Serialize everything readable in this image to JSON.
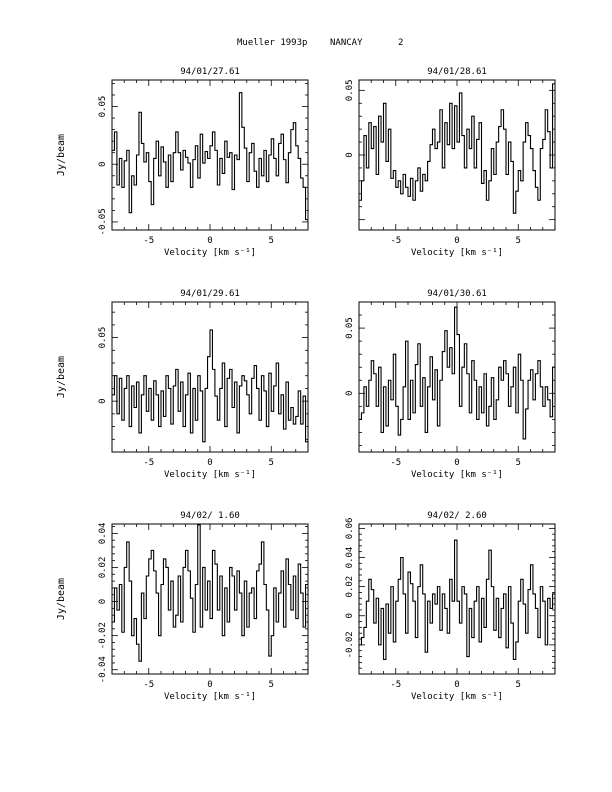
{
  "header": {
    "source": "Mueller 1993p",
    "telescope": "NANCAY",
    "page_number": "2"
  },
  "chart_data": [
    {
      "type": "line",
      "title": "94/01/27.61",
      "xlabel": "Velocity [km s⁻¹]",
      "ylabel": "Jy/beam",
      "xlim": [
        -8,
        8
      ],
      "ylim": [
        -0.057,
        0.073
      ],
      "xticks": [
        -5,
        0,
        5
      ],
      "xtick_labels": [
        "-5",
        "0",
        "5"
      ],
      "yticks": [
        -0.05,
        0,
        0.05
      ],
      "ytick_labels": [
        "-0.05",
        "0",
        "0.05"
      ],
      "grid": false,
      "x": [
        -7.9,
        -7.7,
        -7.5,
        -7.3,
        -7.1,
        -6.9,
        -6.7,
        -6.5,
        -6.3,
        -6.1,
        -5.9,
        -5.7,
        -5.5,
        -5.3,
        -5.1,
        -4.9,
        -4.7,
        -4.5,
        -4.3,
        -4.1,
        -3.9,
        -3.7,
        -3.5,
        -3.3,
        -3.1,
        -2.9,
        -2.7,
        -2.5,
        -2.3,
        -2.1,
        -1.9,
        -1.7,
        -1.5,
        -1.3,
        -1.1,
        -0.9,
        -0.7,
        -0.5,
        -0.3,
        -0.1,
        0.1,
        0.3,
        0.5,
        0.7,
        0.9,
        1.1,
        1.3,
        1.5,
        1.7,
        1.9,
        2.1,
        2.3,
        2.5,
        2.7,
        2.9,
        3.1,
        3.3,
        3.5,
        3.7,
        3.9,
        4.1,
        4.3,
        4.5,
        4.7,
        4.9,
        5.1,
        5.3,
        5.5,
        5.7,
        5.9,
        6.1,
        6.3,
        6.5,
        6.7,
        6.9,
        7.1,
        7.3,
        7.5,
        7.7,
        7.9
      ],
      "y": [
        0.012,
        0.028,
        -0.018,
        0.005,
        -0.02,
        0.003,
        0.012,
        -0.042,
        -0.01,
        -0.018,
        0.008,
        0.045,
        0.018,
        0.002,
        0.01,
        -0.015,
        -0.035,
        0.005,
        0.02,
        -0.01,
        0.015,
        0.002,
        -0.02,
        0.008,
        -0.015,
        0.01,
        0.028,
        0.01,
        -0.005,
        0.012,
        0.006,
        0.001,
        -0.02,
        0.004,
        0.016,
        -0.012,
        0.026,
        0.001,
        0.011,
        0.005,
        0.016,
        0.028,
        0.012,
        -0.018,
        0.005,
        -0.008,
        0.02,
        0.006,
        0.01,
        -0.022,
        0.008,
        0.004,
        0.062,
        0.032,
        0.014,
        -0.015,
        0.01,
        0.018,
        -0.006,
        -0.02,
        0.005,
        -0.01,
        0.012,
        -0.015,
        0.008,
        0.022,
        0.005,
        -0.01,
        0.018,
        0.026,
        0.004,
        -0.016,
        0.01,
        0.03,
        0.036,
        0.016,
        0.005,
        -0.012,
        -0.02,
        -0.048
      ]
    },
    {
      "type": "line",
      "title": "94/01/28.61",
      "xlabel": "Velocity [km s⁻¹]",
      "ylabel": "",
      "xlim": [
        -8,
        8
      ],
      "ylim": [
        -0.058,
        0.058
      ],
      "xticks": [
        -5,
        0,
        5
      ],
      "xtick_labels": [
        "-5",
        "0",
        "5"
      ],
      "yticks": [
        0,
        0.05
      ],
      "ytick_labels": [
        "0",
        "0.05"
      ],
      "grid": false,
      "x": [
        -7.9,
        -7.7,
        -7.5,
        -7.3,
        -7.1,
        -6.9,
        -6.7,
        -6.5,
        -6.3,
        -6.1,
        -5.9,
        -5.7,
        -5.5,
        -5.3,
        -5.1,
        -4.9,
        -4.7,
        -4.5,
        -4.3,
        -4.1,
        -3.9,
        -3.7,
        -3.5,
        -3.3,
        -3.1,
        -2.9,
        -2.7,
        -2.5,
        -2.3,
        -2.1,
        -1.9,
        -1.7,
        -1.5,
        -1.3,
        -1.1,
        -0.9,
        -0.7,
        -0.5,
        -0.3,
        -0.1,
        0.1,
        0.3,
        0.5,
        0.7,
        0.9,
        1.1,
        1.3,
        1.5,
        1.7,
        1.9,
        2.1,
        2.3,
        2.5,
        2.7,
        2.9,
        3.1,
        3.3,
        3.5,
        3.7,
        3.9,
        4.1,
        4.3,
        4.5,
        4.7,
        4.9,
        5.1,
        5.3,
        5.5,
        5.7,
        5.9,
        6.1,
        6.3,
        6.5,
        6.7,
        6.9,
        7.1,
        7.3,
        7.5,
        7.7,
        7.9
      ],
      "y": [
        -0.035,
        -0.02,
        0.015,
        -0.01,
        0.025,
        0.005,
        0.022,
        -0.015,
        0.03,
        0.01,
        0.04,
        -0.005,
        0.02,
        -0.018,
        -0.012,
        -0.025,
        -0.02,
        -0.03,
        -0.015,
        -0.025,
        -0.032,
        -0.018,
        -0.035,
        -0.02,
        -0.01,
        -0.028,
        -0.015,
        -0.02,
        -0.005,
        0.008,
        0.02,
        0.005,
        0.01,
        0.035,
        -0.01,
        0.025,
        0.008,
        0.04,
        0.005,
        0.038,
        0.01,
        0.048,
        0.015,
        -0.01,
        0.02,
        0.005,
        0.03,
        -0.01,
        0.012,
        0.025,
        -0.022,
        -0.012,
        -0.035,
        -0.02,
        0.005,
        -0.015,
        0.01,
        0.022,
        0.035,
        0.02,
        -0.015,
        0.01,
        -0.005,
        -0.045,
        -0.028,
        -0.012,
        -0.02,
        0.01,
        0.025,
        0.015,
        0.005,
        -0.012,
        -0.025,
        -0.035,
        0.005,
        0.012,
        0.035,
        0.018,
        -0.01,
        0.055
      ]
    },
    {
      "type": "line",
      "title": "94/01/29.61",
      "xlabel": "Velocity [km s⁻¹]",
      "ylabel": "Jy/beam",
      "xlim": [
        -8,
        8
      ],
      "ylim": [
        -0.04,
        0.078
      ],
      "xticks": [
        -5,
        0,
        5
      ],
      "xtick_labels": [
        "-5",
        "0",
        "5"
      ],
      "yticks": [
        0,
        0.05
      ],
      "ytick_labels": [
        "0",
        "0.05"
      ],
      "grid": false,
      "x": [
        -7.9,
        -7.7,
        -7.5,
        -7.3,
        -7.1,
        -6.9,
        -6.7,
        -6.5,
        -6.3,
        -6.1,
        -5.9,
        -5.7,
        -5.5,
        -5.3,
        -5.1,
        -4.9,
        -4.7,
        -4.5,
        -4.3,
        -4.1,
        -3.9,
        -3.7,
        -3.5,
        -3.3,
        -3.1,
        -2.9,
        -2.7,
        -2.5,
        -2.3,
        -2.1,
        -1.9,
        -1.7,
        -1.5,
        -1.3,
        -1.1,
        -0.9,
        -0.7,
        -0.5,
        -0.3,
        -0.1,
        0.1,
        0.3,
        0.5,
        0.7,
        0.9,
        1.1,
        1.3,
        1.5,
        1.7,
        1.9,
        2.1,
        2.3,
        2.5,
        2.7,
        2.9,
        3.1,
        3.3,
        3.5,
        3.7,
        3.9,
        4.1,
        4.3,
        4.5,
        4.7,
        4.9,
        5.1,
        5.3,
        5.5,
        5.7,
        5.9,
        6.1,
        6.3,
        6.5,
        6.7,
        6.9,
        7.1,
        7.3,
        7.5,
        7.7,
        7.9
      ],
      "y": [
        0.005,
        0.02,
        -0.01,
        0.018,
        -0.015,
        0.01,
        0.02,
        -0.02,
        0.012,
        -0.005,
        0.015,
        -0.025,
        0.005,
        0.02,
        -0.008,
        0.01,
        -0.015,
        0.016,
        0.005,
        -0.02,
        0.008,
        -0.012,
        0.02,
        0.01,
        -0.018,
        0.012,
        0.025,
        -0.008,
        0.015,
        -0.02,
        0.005,
        0.022,
        -0.025,
        0.01,
        -0.015,
        0.02,
        0.008,
        -0.032,
        0.01,
        0.035,
        0.056,
        0.025,
        0.004,
        -0.015,
        0.01,
        0.03,
        -0.02,
        0.018,
        0.025,
        -0.005,
        0.015,
        -0.025,
        0.012,
        0.02,
        0.016,
        0.005,
        -0.01,
        0.018,
        0.028,
        0.01,
        -0.015,
        0.02,
        0.008,
        -0.02,
        0.022,
        -0.008,
        0.012,
        0.03,
        -0.01,
        0.005,
        -0.022,
        0.015,
        -0.015,
        -0.005,
        -0.018,
        -0.012,
        0.008,
        -0.018,
        0.004,
        -0.032
      ]
    },
    {
      "type": "line",
      "title": "94/01/30.61",
      "xlabel": "Velocity [km s⁻¹]",
      "ylabel": "",
      "xlim": [
        -8,
        8
      ],
      "ylim": [
        -0.045,
        0.07
      ],
      "xticks": [
        -5,
        0,
        5
      ],
      "xtick_labels": [
        "-5",
        "0",
        "5"
      ],
      "yticks": [
        0,
        0.05
      ],
      "ytick_labels": [
        "0",
        "0.05"
      ],
      "grid": false,
      "x": [
        -7.9,
        -7.7,
        -7.5,
        -7.3,
        -7.1,
        -6.9,
        -6.7,
        -6.5,
        -6.3,
        -6.1,
        -5.9,
        -5.7,
        -5.5,
        -5.3,
        -5.1,
        -4.9,
        -4.7,
        -4.5,
        -4.3,
        -4.1,
        -3.9,
        -3.7,
        -3.5,
        -3.3,
        -3.1,
        -2.9,
        -2.7,
        -2.5,
        -2.3,
        -2.1,
        -1.9,
        -1.7,
        -1.5,
        -1.3,
        -1.1,
        -0.9,
        -0.7,
        -0.5,
        -0.3,
        -0.1,
        0.1,
        0.3,
        0.5,
        0.7,
        0.9,
        1.1,
        1.3,
        1.5,
        1.7,
        1.9,
        2.1,
        2.3,
        2.5,
        2.7,
        2.9,
        3.1,
        3.3,
        3.5,
        3.7,
        3.9,
        4.1,
        4.3,
        4.5,
        4.7,
        4.9,
        5.1,
        5.3,
        5.5,
        5.7,
        5.9,
        6.1,
        6.3,
        6.5,
        6.7,
        6.9,
        7.1,
        7.3,
        7.5,
        7.7,
        7.9
      ],
      "y": [
        -0.02,
        -0.015,
        0.005,
        -0.01,
        0.01,
        0.025,
        0.015,
        -0.01,
        0.02,
        -0.03,
        0.005,
        -0.025,
        0.01,
        -0.005,
        0.03,
        -0.01,
        -0.032,
        -0.02,
        0.005,
        0.04,
        -0.02,
        0.01,
        -0.015,
        0.022,
        0.038,
        -0.01,
        0.012,
        -0.03,
        0.005,
        0.028,
        -0.005,
        0.018,
        -0.025,
        0.01,
        0.032,
        0.048,
        0.02,
        0.035,
        0.015,
        0.066,
        0.045,
        -0.01,
        0.02,
        0.038,
        0.015,
        -0.015,
        0.025,
        0.01,
        -0.02,
        0.005,
        -0.015,
        0.015,
        -0.025,
        -0.01,
        0.012,
        -0.02,
        -0.005,
        0.02,
        0.01,
        0.025,
        0.015,
        -0.01,
        0.005,
        0.02,
        -0.015,
        0.03,
        0.01,
        -0.035,
        -0.012,
        0.01,
        0.018,
        -0.005,
        0.015,
        0.025,
        0.005,
        -0.01,
        0.005,
        -0.005,
        -0.018,
        0.02
      ]
    },
    {
      "type": "line",
      "title": "94/02/ 1.60",
      "xlabel": "Velocity [km s⁻¹]",
      "ylabel": "Jy/beam",
      "xlim": [
        -8,
        8
      ],
      "ylim": [
        -0.0425,
        0.0455
      ],
      "xticks": [
        -5,
        0,
        5
      ],
      "xtick_labels": [
        "-5",
        "0",
        "5"
      ],
      "yticks": [
        -0.04,
        -0.02,
        0,
        0.02,
        0.04
      ],
      "ytick_labels": [
        "-0.04",
        "-0.02",
        "0",
        "0.02",
        "0.04"
      ],
      "grid": false,
      "x": [
        -7.9,
        -7.7,
        -7.5,
        -7.3,
        -7.1,
        -6.9,
        -6.7,
        -6.5,
        -6.3,
        -6.1,
        -5.9,
        -5.7,
        -5.5,
        -5.3,
        -5.1,
        -4.9,
        -4.7,
        -4.5,
        -4.3,
        -4.1,
        -3.9,
        -3.7,
        -3.5,
        -3.3,
        -3.1,
        -2.9,
        -2.7,
        -2.5,
        -2.3,
        -2.1,
        -1.9,
        -1.7,
        -1.5,
        -1.3,
        -1.1,
        -0.9,
        -0.7,
        -0.5,
        -0.3,
        -0.1,
        0.1,
        0.3,
        0.5,
        0.7,
        0.9,
        1.1,
        1.3,
        1.5,
        1.7,
        1.9,
        2.1,
        2.3,
        2.5,
        2.7,
        2.9,
        3.1,
        3.3,
        3.5,
        3.7,
        3.9,
        4.1,
        4.3,
        4.5,
        4.7,
        4.9,
        5.1,
        5.3,
        5.5,
        5.7,
        5.9,
        6.1,
        6.3,
        6.5,
        6.7,
        6.9,
        7.1,
        7.3,
        7.5,
        7.7,
        7.9
      ],
      "y": [
        -0.012,
        0.008,
        -0.005,
        0.01,
        -0.018,
        0.02,
        0.035,
        0.012,
        -0.02,
        -0.01,
        -0.025,
        -0.035,
        0.005,
        -0.01,
        0.015,
        0.025,
        0.03,
        0.018,
        0.005,
        -0.02,
        0.01,
        0.025,
        0.02,
        -0.005,
        0.012,
        -0.015,
        -0.008,
        0.015,
        -0.012,
        0.02,
        0.03,
        0.018,
        0.002,
        -0.018,
        0.01,
        0.045,
        -0.015,
        0.02,
        -0.005,
        0.012,
        -0.01,
        0.03,
        0.022,
        -0.005,
        0.015,
        -0.02,
        0.008,
        -0.012,
        0.02,
        0.015,
        -0.005,
        0.018,
        0.005,
        -0.02,
        0.012,
        -0.015,
        0.005,
        0.008,
        -0.01,
        0.018,
        0.022,
        0.035,
        0.01,
        -0.005,
        -0.032,
        -0.02,
        0.008,
        -0.012,
        0.005,
        0.018,
        -0.015,
        0.025,
        0.01,
        -0.005,
        0.015,
        -0.01,
        0.022,
        0.005,
        -0.015,
        0.01
      ]
    },
    {
      "type": "line",
      "title": "94/02/ 2.60",
      "xlabel": "Velocity [km s⁻¹]",
      "ylabel": "",
      "xlim": [
        -8,
        8
      ],
      "ylim": [
        -0.04,
        0.063
      ],
      "xticks": [
        -5,
        0,
        5
      ],
      "xtick_labels": [
        "-5",
        "0",
        "5"
      ],
      "yticks": [
        -0.02,
        0,
        0.02,
        0.04,
        0.06
      ],
      "ytick_labels": [
        "-0.02",
        "0",
        "0.02",
        "0.04",
        "0.06"
      ],
      "grid": false,
      "x": [
        -7.9,
        -7.7,
        -7.5,
        -7.3,
        -7.1,
        -6.9,
        -6.7,
        -6.5,
        -6.3,
        -6.1,
        -5.9,
        -5.7,
        -5.5,
        -5.3,
        -5.1,
        -4.9,
        -4.7,
        -4.5,
        -4.3,
        -4.1,
        -3.9,
        -3.7,
        -3.5,
        -3.3,
        -3.1,
        -2.9,
        -2.7,
        -2.5,
        -2.3,
        -2.1,
        -1.9,
        -1.7,
        -1.5,
        -1.3,
        -1.1,
        -0.9,
        -0.7,
        -0.5,
        -0.3,
        -0.1,
        0.1,
        0.3,
        0.5,
        0.7,
        0.9,
        1.1,
        1.3,
        1.5,
        1.7,
        1.9,
        2.1,
        2.3,
        2.5,
        2.7,
        2.9,
        3.1,
        3.3,
        3.5,
        3.7,
        3.9,
        4.1,
        4.3,
        4.5,
        4.7,
        4.9,
        5.1,
        5.3,
        5.5,
        5.7,
        5.9,
        6.1,
        6.3,
        6.5,
        6.7,
        6.9,
        7.1,
        7.3,
        7.5,
        7.7,
        7.9
      ],
      "y": [
        -0.02,
        -0.015,
        -0.008,
        0.01,
        0.025,
        0.018,
        -0.005,
        0.012,
        -0.02,
        0.005,
        -0.03,
        0.008,
        -0.012,
        0.02,
        -0.018,
        0.01,
        0.025,
        0.04,
        0.015,
        -0.012,
        0.03,
        0.022,
        0.01,
        -0.015,
        0.02,
        0.035,
        0.015,
        -0.025,
        0.01,
        -0.005,
        0.015,
        0.008,
        0.02,
        -0.01,
        0.015,
        0.005,
        -0.012,
        0.025,
        0.01,
        0.052,
        0.01,
        -0.005,
        0.02,
        0.015,
        -0.028,
        0.005,
        -0.015,
        0.01,
        0.02,
        -0.018,
        0.012,
        -0.008,
        0.025,
        0.045,
        0.02,
        -0.01,
        0.012,
        -0.015,
        0.005,
        0.015,
        -0.022,
        0.02,
        -0.005,
        -0.03,
        -0.018,
        0.01,
        0.025,
        0.008,
        -0.012,
        0.018,
        0.035,
        0.015,
        0.005,
        -0.015,
        0.02,
        0.01,
        -0.02,
        0.012,
        0.005,
        0.015
      ]
    }
  ]
}
